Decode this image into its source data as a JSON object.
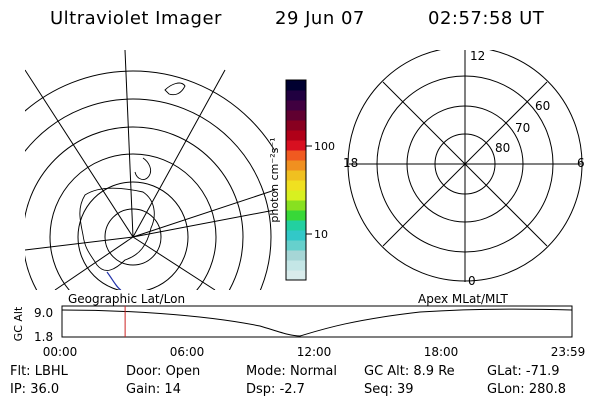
{
  "header": {
    "app_title": "Ultraviolet Imager",
    "date": "29 Jun 07",
    "time": "02:57:58 UT"
  },
  "colorbar": {
    "unit_label": "photon cm⁻²s⁻¹",
    "ticks": [
      "100",
      "10"
    ],
    "colors": [
      "#d9ecec",
      "#c4e6e6",
      "#a6d6d6",
      "#66d0cc",
      "#32c8c8",
      "#22d0a0",
      "#38d838",
      "#88e020",
      "#d8f020",
      "#f0e020",
      "#f0c020",
      "#f09020",
      "#f05a20",
      "#d81020",
      "#b00018",
      "#880020",
      "#600030",
      "#400040",
      "#200040",
      "#000030"
    ]
  },
  "geo_map": {
    "label": "Geographic Lat/Lon"
  },
  "apex_grid": {
    "label": "Apex MLat/MLT",
    "mlt_labels": {
      "top": "12",
      "left": "18",
      "right": "6",
      "bottom": "0"
    },
    "lat_labels": [
      "60",
      "70",
      "80"
    ]
  },
  "alt_plot": {
    "axis_label": "GC Alt",
    "y_ticks": [
      "9.0",
      "1.8"
    ],
    "x_ticks": [
      "00:00",
      "06:00",
      "12:00",
      "18:00",
      "23:59"
    ],
    "marker_time_hours": 2.97
  },
  "status": {
    "flt_key": "Flt:",
    "flt_val": "LBHL",
    "door_key": "Door:",
    "door_val": "Open",
    "mode_key": "Mode:",
    "mode_val": "Normal",
    "gcalt_key": "GC Alt:",
    "gcalt_val": "8.9 Re",
    "glat_key": "GLat:",
    "glat_val": "-71.9",
    "ip_key": "IP:",
    "ip_val": "36.0",
    "gain_key": "Gain:",
    "gain_val": "14",
    "dsp_key": "Dsp:",
    "dsp_val": "-2.7",
    "seq_key": "Seq:",
    "seq_val": "39",
    "glon_key": "GLon:",
    "glon_val": "280.8"
  }
}
